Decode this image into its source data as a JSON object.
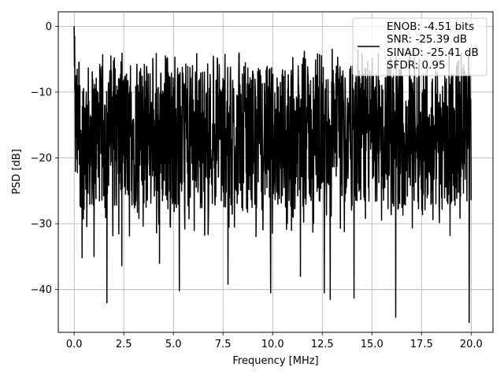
{
  "chart_data": {
    "type": "line",
    "xlabel": "Frequency [MHz]",
    "ylabel": "PSD [dB]",
    "xlim": [
      -0.8,
      21.1
    ],
    "ylim": [
      -46.5,
      2.2
    ],
    "x_ticks": [
      0.0,
      2.5,
      5.0,
      7.5,
      10.0,
      12.5,
      15.0,
      17.5,
      20.0
    ],
    "x_tick_labels": [
      "0.0",
      "2.5",
      "5.0",
      "7.5",
      "10.0",
      "12.5",
      "15.0",
      "17.5",
      "20.0"
    ],
    "y_ticks": [
      0,
      -10,
      -20,
      -30,
      -40
    ],
    "y_tick_labels": [
      "0",
      "−10",
      "−20",
      "−30",
      "−40"
    ],
    "grid": true,
    "legend_position": "top-right",
    "legend_entries": [
      "ENOB: -4.51 bits",
      "SNR: -25.39 dB",
      "SINAD: -25.41 dB",
      "SFDR: 0.95"
    ],
    "series": [
      {
        "color": "#000000",
        "x_start": 0.0,
        "x_end": 20.0,
        "typical_range_db": [
          -28,
          -6
        ],
        "peak_points": [
          [
            0.0,
            0.0
          ],
          [
            0.03,
            -1.5
          ],
          [
            0.1,
            -7.5
          ],
          [
            4.6,
            -4.5
          ],
          [
            8.3,
            -4.2
          ],
          [
            11.6,
            -3.8
          ],
          [
            13.0,
            -3.5
          ],
          [
            14.3,
            -3.6
          ],
          [
            16.9,
            -3.7
          ],
          [
            19.9,
            -5.2
          ]
        ],
        "dip_points": [
          [
            0.4,
            -35.2
          ],
          [
            1.0,
            -35.0
          ],
          [
            1.65,
            -42.0
          ],
          [
            2.4,
            -36.4
          ],
          [
            4.3,
            -36.0
          ],
          [
            5.3,
            -40.2
          ],
          [
            7.75,
            -39.2
          ],
          [
            9.9,
            -40.5
          ],
          [
            11.4,
            -38.0
          ],
          [
            12.6,
            -40.5
          ],
          [
            12.9,
            -41.5
          ],
          [
            14.1,
            -41.3
          ],
          [
            16.2,
            -44.2
          ],
          [
            19.9,
            -45.0
          ]
        ]
      }
    ]
  }
}
